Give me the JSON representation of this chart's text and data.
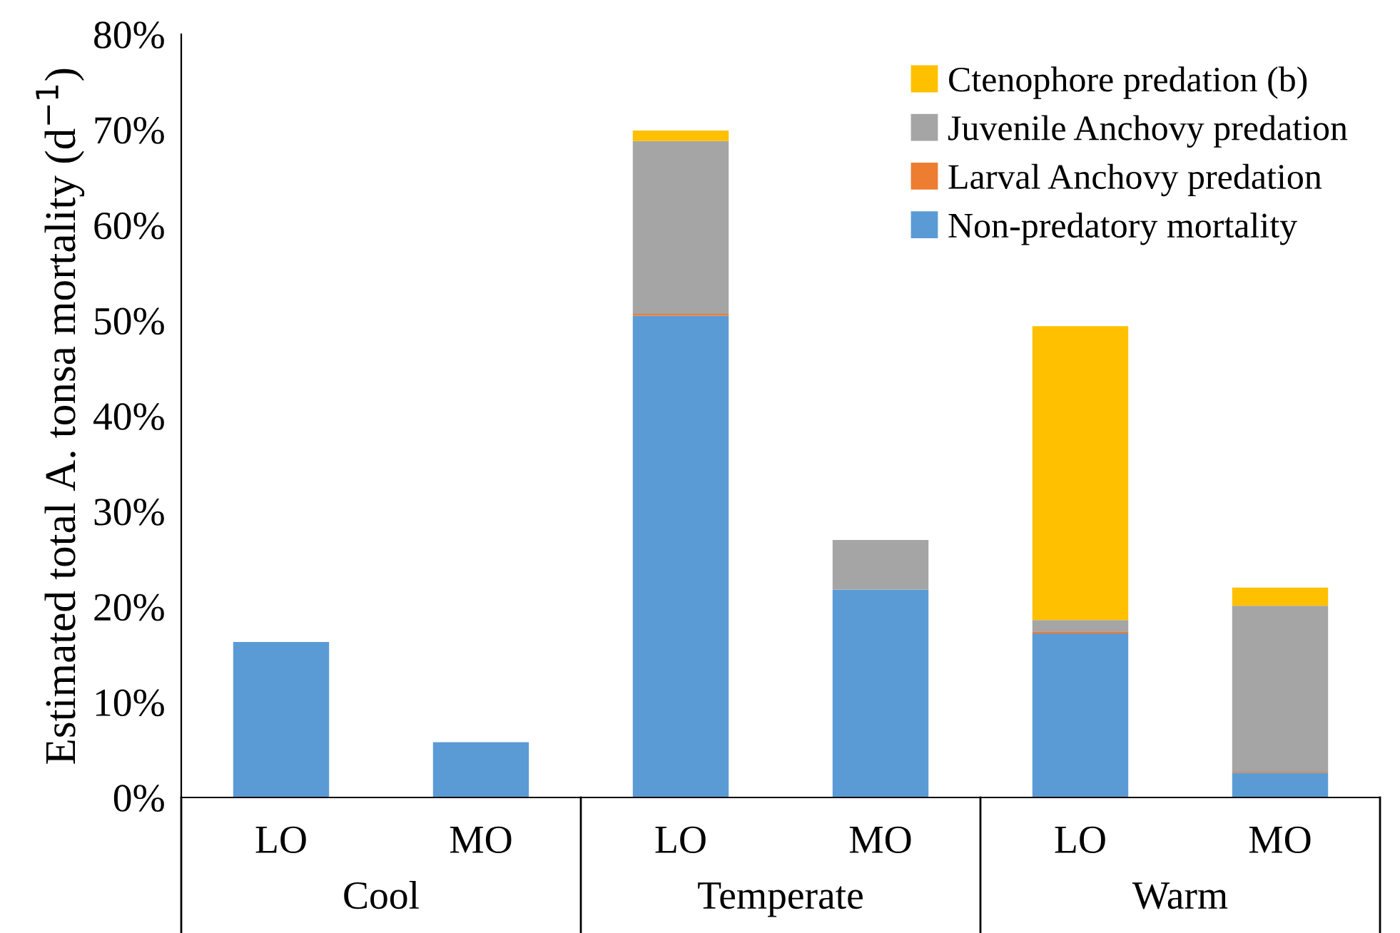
{
  "chart_data": {
    "type": "bar",
    "stacked": true,
    "ylabel": "Estimated total A. tonsa mortality (d$^{−1}$)",
    "categories": [
      "LO",
      "MO",
      "LO",
      "MO",
      "LO",
      "MO"
    ],
    "annotations": [
      "Cool",
      "Temperate",
      "Warm"
    ],
    "series": [
      {
        "name": "Non-predatory mortality",
        "color": "#5b9bd5",
        "values": [
          16.3,
          5.8,
          50.5,
          21.8,
          17.2,
          2.6
        ]
      },
      {
        "name": "Larval Anchovy predation",
        "color": "#ed7d31",
        "values": [
          0,
          0,
          0.2,
          0,
          0.2,
          0.1
        ]
      },
      {
        "name": "Juvenile Anchovy predation",
        "color": "#a5a5a5",
        "values": [
          0,
          0,
          18.1,
          5.2,
          1.2,
          17.4
        ]
      },
      {
        "name": "Ctenophore predation (b)",
        "color": "#ffc000",
        "values": [
          0,
          0,
          1.1,
          0,
          30.8,
          1.9
        ]
      }
    ],
    "ylim": [
      0,
      80
    ],
    "yticks": [
      {
        "value": 0,
        "label": "0%"
      },
      {
        "value": 10,
        "label": "10%"
      },
      {
        "value": 20,
        "label": "20%"
      },
      {
        "value": 30,
        "label": "30%"
      },
      {
        "value": 40,
        "label": "40%"
      },
      {
        "value": 50,
        "label": "50%"
      },
      {
        "value": 60,
        "label": "60%"
      },
      {
        "value": 70,
        "label": "70%"
      },
      {
        "value": 80,
        "label": "80%"
      }
    ],
    "legend": "top right",
    "grid": false
  }
}
